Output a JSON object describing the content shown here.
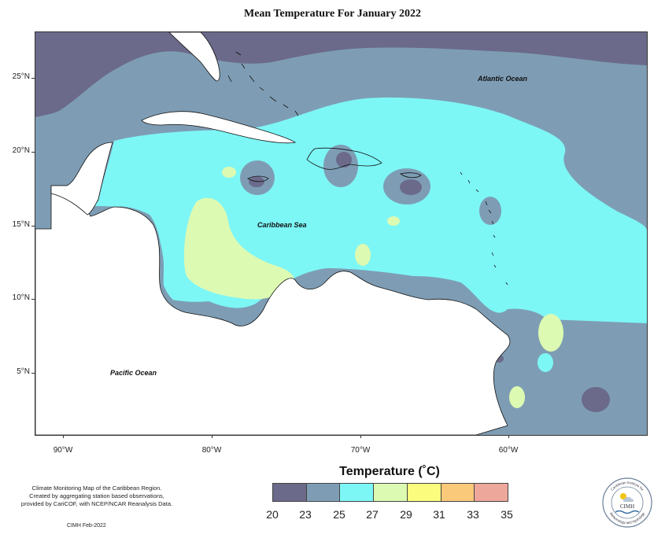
{
  "title": "Mean Temperature For January 2022",
  "ocean_labels": {
    "atlantic": "Atlantic Ocean",
    "caribbean": "Caribbean Sea",
    "pacific": "Pacific Ocean"
  },
  "axes": {
    "latitudes": [
      "25°N",
      "20°N",
      "15°N",
      "10°N",
      "5°N"
    ],
    "longitudes": [
      "90°W",
      "80°W",
      "70°W",
      "60°W"
    ]
  },
  "legend": {
    "title": "Temperature (˚C)",
    "labels": [
      "20",
      "23",
      "25",
      "27",
      "29",
      "31",
      "33",
      "35"
    ],
    "colors": [
      "#6b6a8a",
      "#7e9db4",
      "#7df6f6",
      "#ddfab2",
      "#fbfb7e",
      "#fbc97a",
      "#eea79b"
    ]
  },
  "credit": {
    "line1": "Climate Monitoring Map of the Caribbean Region.",
    "line2": "Created by aggregating station based observations,",
    "line3": "provided by CariCOF, with NCEP/NCAR Reanalysis Data.",
    "date": "CIMH Feb-2022"
  },
  "logo": {
    "top_text": "Caribbean Institute for",
    "center_text": "CIMH",
    "bottom_text": "Meteorology and Hydrology"
  }
}
